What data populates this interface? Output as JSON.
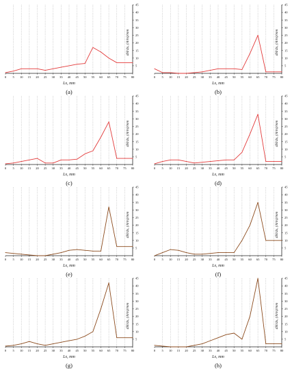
{
  "figure": {
    "x_ticks": [
      0,
      5,
      10,
      15,
      20,
      25,
      30,
      35,
      40,
      45,
      50,
      55,
      60,
      65,
      70,
      75,
      80
    ],
    "y_ticks": [
      5,
      10,
      15,
      20,
      25,
      30,
      35,
      40,
      45
    ]
  },
  "chart_data": [
    {
      "panel_label": "(a)",
      "type": "line",
      "color": "#e23a3a",
      "xlabel": "Lx,  mm",
      "ylabel": "dH/dx,  (A/m)/mm",
      "xlim": [
        0,
        80
      ],
      "ylim": [
        0,
        45
      ],
      "grid": "vertical dotted",
      "x": [
        0,
        5,
        10,
        15,
        20,
        25,
        30,
        35,
        40,
        45,
        50,
        55,
        60,
        65,
        70,
        75,
        80
      ],
      "y": [
        0.5,
        1.5,
        3,
        3,
        3,
        2,
        3,
        4,
        5,
        6,
        6.5,
        17,
        14,
        10,
        7,
        7,
        7
      ]
    },
    {
      "panel_label": "(b)",
      "type": "line",
      "color": "#e23a3a",
      "xlabel": "Lx,  mm",
      "ylabel": "dH/dx,  (A/m)/mm",
      "xlim": [
        0,
        80
      ],
      "ylim": [
        0,
        45
      ],
      "grid": "vertical dotted",
      "x": [
        0,
        5,
        10,
        15,
        20,
        25,
        30,
        35,
        40,
        45,
        50,
        55,
        60,
        65,
        70,
        75,
        80
      ],
      "y": [
        3,
        0.5,
        0.5,
        0,
        0,
        0.5,
        1,
        2,
        3,
        3,
        3,
        2.5,
        13,
        25,
        1,
        1,
        1
      ]
    },
    {
      "panel_label": "(c)",
      "type": "line",
      "color": "#e23a3a",
      "xlabel": "Lx,  mm",
      "ylabel": "dH/dx,  (A/m)/mm",
      "xlim": [
        0,
        80
      ],
      "ylim": [
        0,
        45
      ],
      "grid": "vertical dotted",
      "x": [
        0,
        5,
        10,
        15,
        20,
        25,
        30,
        35,
        40,
        45,
        50,
        55,
        60,
        65,
        70,
        75,
        80
      ],
      "y": [
        0.5,
        1,
        2,
        3,
        4,
        1,
        1,
        3,
        3,
        3.5,
        7,
        9,
        18,
        28,
        4,
        4,
        4
      ]
    },
    {
      "panel_label": "(d)",
      "type": "line",
      "color": "#e23a3a",
      "xlabel": "Lx,  mm",
      "ylabel": "dH/dx,  (A/m)/mm",
      "xlim": [
        0,
        80
      ],
      "ylim": [
        0,
        45
      ],
      "grid": "vertical dotted",
      "x": [
        0,
        5,
        10,
        15,
        20,
        25,
        30,
        35,
        40,
        45,
        50,
        55,
        60,
        65,
        70,
        75,
        80
      ],
      "y": [
        0.5,
        2,
        3,
        3,
        2,
        1,
        1.5,
        2,
        2.5,
        3,
        3,
        8,
        20,
        33,
        2,
        2,
        2
      ]
    },
    {
      "panel_label": "(e)",
      "type": "line",
      "color": "#8b4a1c",
      "xlabel": "Lx,  mm",
      "ylabel": "dH/dx,  (A/m)/mm",
      "xlim": [
        0,
        80
      ],
      "ylim": [
        0,
        45
      ],
      "grid": "vertical dotted",
      "x": [
        0,
        5,
        10,
        15,
        20,
        25,
        30,
        35,
        40,
        45,
        50,
        55,
        60,
        65,
        70,
        75,
        80
      ],
      "y": [
        2,
        1.5,
        1,
        0.5,
        0,
        0,
        1,
        2,
        3.5,
        4,
        3.5,
        3,
        3,
        32,
        6,
        6,
        6
      ]
    },
    {
      "panel_label": "(f)",
      "type": "line",
      "color": "#8b4a1c",
      "xlabel": "Lx,  mm",
      "ylabel": "dH/dx,  (A/m)/mm",
      "xlim": [
        0,
        80
      ],
      "ylim": [
        0,
        45
      ],
      "grid": "vertical dotted",
      "x": [
        0,
        5,
        10,
        15,
        20,
        25,
        30,
        35,
        40,
        45,
        50,
        55,
        60,
        65,
        70,
        75,
        80
      ],
      "y": [
        0,
        2,
        4,
        3.5,
        2,
        1,
        1,
        1.5,
        2,
        2,
        2,
        10,
        20,
        35,
        10,
        10,
        10
      ]
    },
    {
      "panel_label": "(g)",
      "type": "line",
      "color": "#8b4a1c",
      "xlabel": "Lx,  mm",
      "ylabel": "dH/dx,  (A/m)/mm",
      "xlim": [
        0,
        80
      ],
      "ylim": [
        0,
        45
      ],
      "grid": "vertical dotted",
      "x": [
        0,
        5,
        10,
        15,
        20,
        25,
        30,
        35,
        40,
        45,
        50,
        55,
        60,
        65,
        70,
        75,
        80
      ],
      "y": [
        0.5,
        1,
        2,
        3.5,
        2,
        1,
        2,
        3,
        4,
        5,
        7,
        10,
        25,
        42,
        6,
        6,
        6
      ]
    },
    {
      "panel_label": "(h)",
      "type": "line",
      "color": "#8b4a1c",
      "xlabel": "Lx,  mm",
      "ylabel": "dH/dx,  (A/m)/mm",
      "xlim": [
        0,
        80
      ],
      "ylim": [
        0,
        45
      ],
      "grid": "vertical dotted",
      "x": [
        0,
        5,
        10,
        15,
        20,
        25,
        30,
        35,
        40,
        45,
        50,
        55,
        60,
        65,
        70,
        75,
        80
      ],
      "y": [
        1,
        0.5,
        0,
        0,
        0,
        1,
        2,
        4,
        6,
        8,
        9,
        5,
        20,
        45,
        2,
        2,
        2
      ]
    }
  ]
}
